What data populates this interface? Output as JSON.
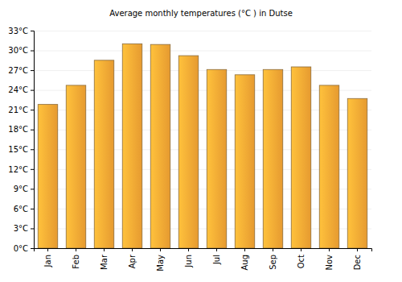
{
  "chart_data": {
    "type": "bar",
    "title": "Average monthly temperatures (°C ) in Dutse",
    "categories": [
      "Jan",
      "Feb",
      "Mar",
      "Apr",
      "May",
      "Jun",
      "Jul",
      "Aug",
      "Sep",
      "Oct",
      "Nov",
      "Dec"
    ],
    "values": [
      21.8,
      24.7,
      28.5,
      31.0,
      30.9,
      29.2,
      27.1,
      26.3,
      27.1,
      27.5,
      24.7,
      22.7
    ],
    "color": "#fba834",
    "ylim": [
      0,
      33
    ],
    "yticks": [
      {
        "value": 0,
        "label": "0°C"
      },
      {
        "value": 3,
        "label": "3°C"
      },
      {
        "value": 6,
        "label": "6°C"
      },
      {
        "value": 9,
        "label": "9°C"
      },
      {
        "value": 12,
        "label": "12°C"
      },
      {
        "value": 15,
        "label": "15°C"
      },
      {
        "value": 18,
        "label": "18°C"
      },
      {
        "value": 21,
        "label": "21°C"
      },
      {
        "value": 24,
        "label": "24°C"
      },
      {
        "value": 27,
        "label": "27°C"
      },
      {
        "value": 30,
        "label": "30°C"
      },
      {
        "value": 33,
        "label": "33°C"
      }
    ],
    "grid": true
  }
}
